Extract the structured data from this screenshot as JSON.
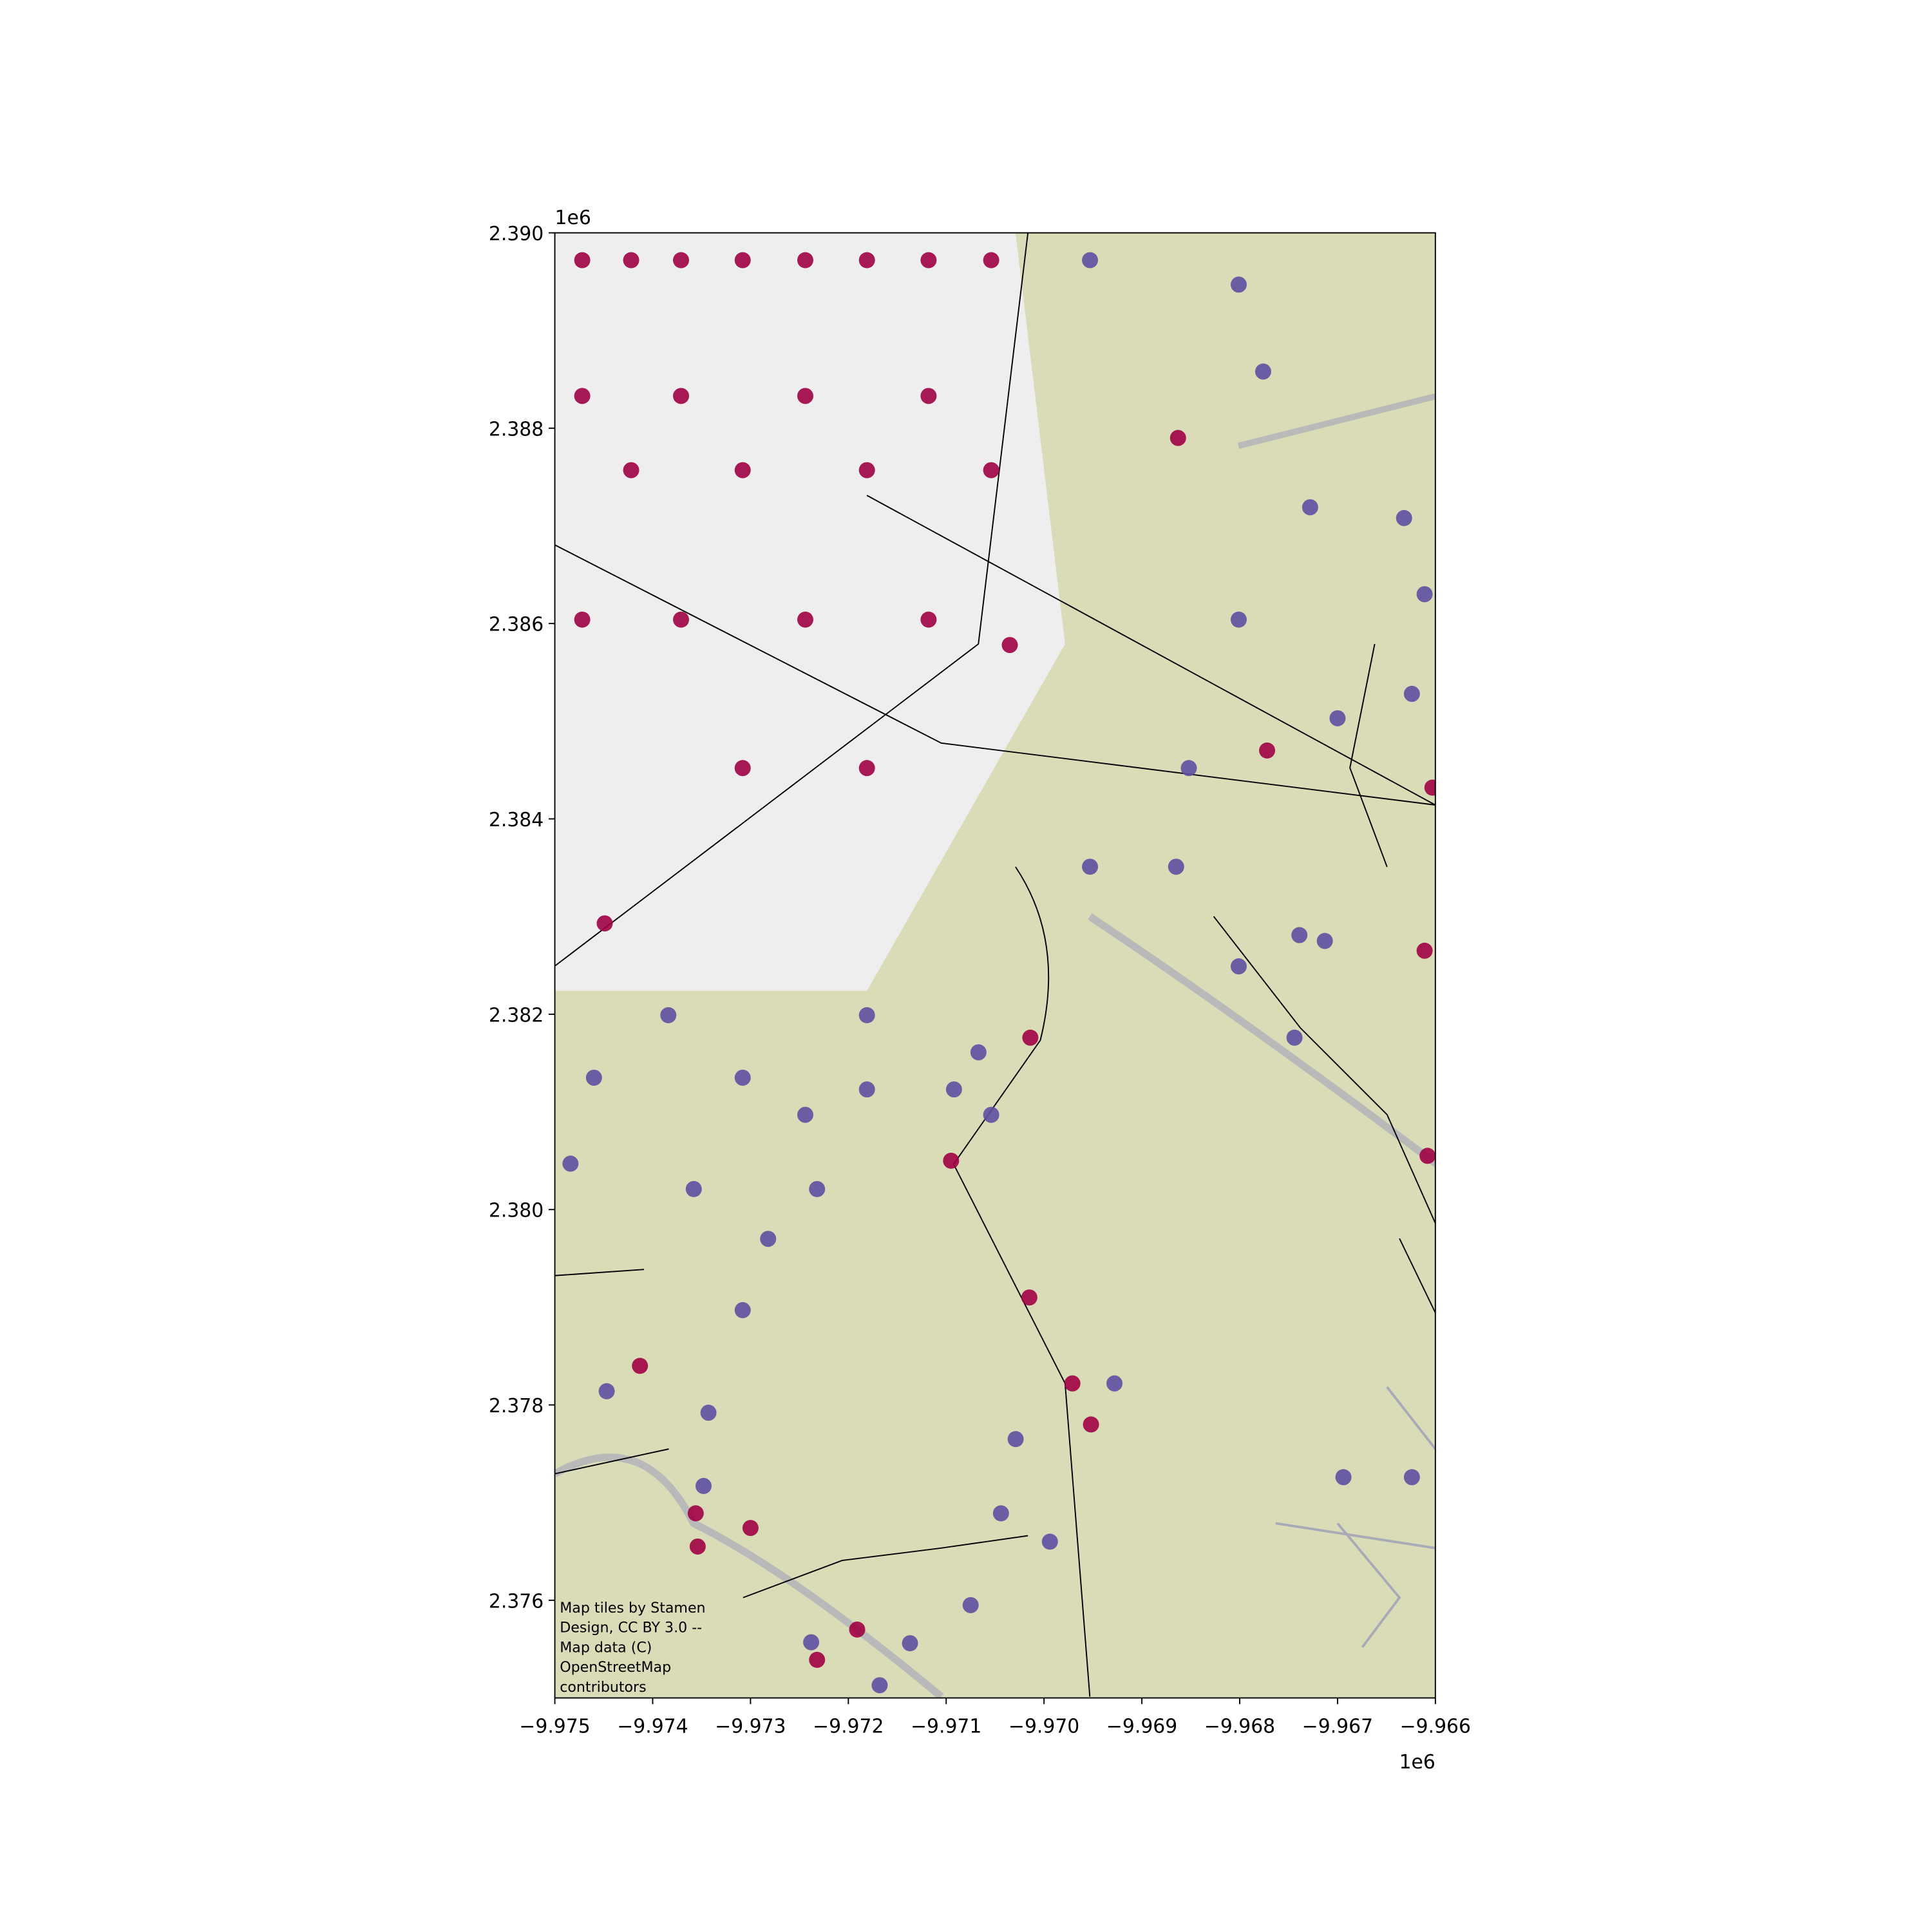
{
  "chart_data": {
    "type": "scatter",
    "xlim": [
      -9975000,
      -9966000
    ],
    "ylim": [
      2375000,
      2390000
    ],
    "xticks": [
      {
        "value": -9975000,
        "label": "−9.975"
      },
      {
        "value": -9974000,
        "label": "−9.974"
      },
      {
        "value": -9973000,
        "label": "−9.973"
      },
      {
        "value": -9972000,
        "label": "−9.972"
      },
      {
        "value": -9971000,
        "label": "−9.971"
      },
      {
        "value": -9970000,
        "label": "−9.970"
      },
      {
        "value": -9969000,
        "label": "−9.969"
      },
      {
        "value": -9968000,
        "label": "−9.968"
      },
      {
        "value": -9967000,
        "label": "−9.967"
      },
      {
        "value": -9966000,
        "label": "−9.966"
      }
    ],
    "yticks": [
      {
        "value": 2376000,
        "label": "2.376"
      },
      {
        "value": 2378000,
        "label": "2.378"
      },
      {
        "value": 2380000,
        "label": "2.380"
      },
      {
        "value": 2382000,
        "label": "2.382"
      },
      {
        "value": 2384000,
        "label": "2.384"
      },
      {
        "value": 2386000,
        "label": "2.386"
      },
      {
        "value": 2388000,
        "label": "2.388"
      },
      {
        "value": 2390000,
        "label": "2.390"
      }
    ],
    "x_offset_label": "1e6",
    "y_offset_label": "1e6",
    "attribution": [
      "Map tiles by Stamen",
      "Design, CC BY 3.0 --",
      "Map data (C)",
      "OpenStreetMap",
      "contributors"
    ],
    "series": [
      {
        "color": "#5e4fa2",
        "x": [
          -9966940,
          -9966240,
          -9966320,
          -9967280,
          -9967440,
          -9967390,
          -9969280,
          -9970290,
          -9970440,
          -9970750,
          -9969940,
          -9971370,
          -9971680,
          -9972380,
          -9973480,
          -9974470,
          -9973430,
          -9973080,
          -9972820,
          -9974840,
          -9974600,
          -9973580,
          -9972320,
          -9970920,
          -9970670,
          -9968520,
          -9968010,
          -9967760,
          -9968010,
          -9969530,
          -9966240,
          -9966110,
          -9967000,
          -9968650,
          -9968010,
          -9967130,
          -9971810,
          -9973080,
          -9973840,
          -9971810,
          -9970540,
          -9972440,
          -9969530
        ],
        "y": [
          2377260,
          2377260,
          2387080,
          2387190,
          2381760,
          2382810,
          2378220,
          2377650,
          2376890,
          2375950,
          2376600,
          2375560,
          2375130,
          2375570,
          2377170,
          2378140,
          2377920,
          2378970,
          2379700,
          2380470,
          2381350,
          2380210,
          2380210,
          2381230,
          2381610,
          2384520,
          2386040,
          2388580,
          2389470,
          2389720,
          2385280,
          2386300,
          2385030,
          2383510,
          2382490,
          2382750,
          2381990,
          2381350,
          2381990,
          2381230,
          2380970,
          2380970,
          2383510
        ]
      },
      {
        "color": "#9e0142",
        "x": [
          -9966110,
          -9966080,
          -9970140,
          -9970950,
          -9970150,
          -9969710,
          -9969520,
          -9967720,
          -9973560,
          -9973540,
          -9973000,
          -9971910,
          -9974490,
          -9968630,
          -9970350,
          -9966030,
          -9974130,
          -9972320,
          -9974720,
          -9974220,
          -9973710,
          -9973080,
          -9972440,
          -9971810,
          -9971180,
          -9970540,
          -9974720,
          -9973710,
          -9972440,
          -9971180,
          -9974220,
          -9973080,
          -9971810,
          -9970540,
          -9974720,
          -9973710,
          -9972440,
          -9971180,
          -9973080,
          -9971810
        ],
        "y": [
          2382650,
          2380550,
          2381760,
          2380500,
          2379100,
          2378220,
          2377800,
          2384700,
          2376890,
          2376550,
          2376740,
          2375700,
          2382930,
          2387900,
          2385780,
          2384320,
          2378400,
          2375390,
          2389720,
          2389720,
          2389720,
          2389720,
          2389720,
          2389720,
          2389720,
          2389720,
          2388330,
          2388330,
          2388330,
          2388330,
          2387570,
          2387570,
          2387570,
          2387570,
          2386040,
          2386040,
          2386040,
          2386040,
          2384520,
          2384520
        ]
      }
    ]
  }
}
